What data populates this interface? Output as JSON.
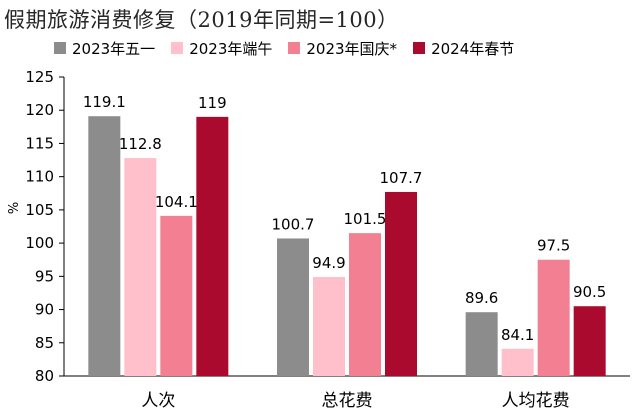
{
  "chart_data": {
    "type": "bar",
    "title": "假期旅游消费修复（2019年同期=100）",
    "ylabel": "%",
    "xlabel": "",
    "ylim": [
      80,
      125
    ],
    "yticks": [
      80,
      85,
      90,
      95,
      100,
      105,
      110,
      115,
      120,
      125
    ],
    "grid": false,
    "legend_position": "top",
    "categories": [
      "人次",
      "总花费",
      "人均花费"
    ],
    "series": [
      {
        "name": "2023年五一",
        "color": "#8c8c8c",
        "values": [
          119.1,
          100.7,
          89.6
        ],
        "labels": [
          "119.1",
          "100.7",
          "89.6"
        ]
      },
      {
        "name": "2023年端午",
        "color": "#ffc0cb",
        "values": [
          112.8,
          94.9,
          84.1
        ],
        "labels": [
          "112.8",
          "94.9",
          "84.1"
        ]
      },
      {
        "name": "2023年国庆*",
        "color": "#f28092",
        "values": [
          104.1,
          101.5,
          97.5
        ],
        "labels": [
          "104.1",
          "101.5",
          "97.5"
        ]
      },
      {
        "name": "2024年春节",
        "color": "#aa0a2e",
        "values": [
          119,
          107.7,
          90.5
        ],
        "labels": [
          "119",
          "107.7",
          "90.5"
        ]
      }
    ]
  }
}
